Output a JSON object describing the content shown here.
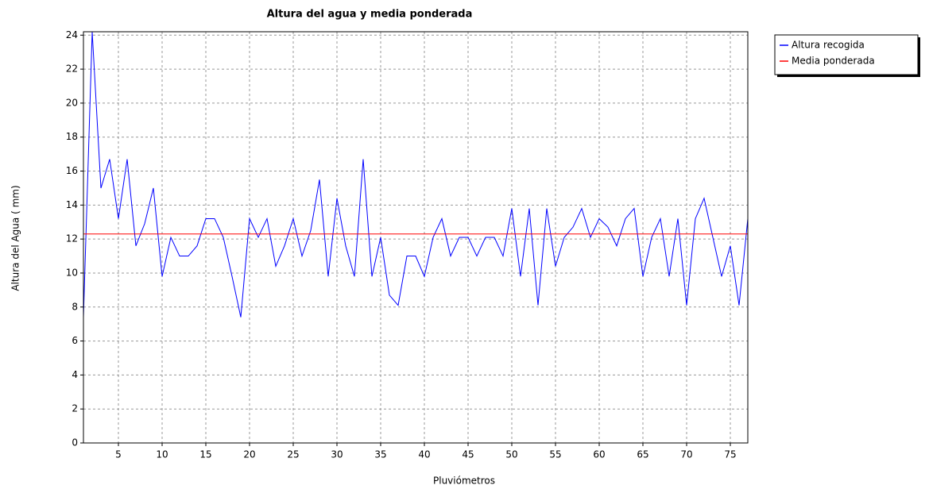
{
  "chart_data": {
    "type": "line",
    "title": "Altura del agua y media ponderada",
    "x_label": "Pluviómetros",
    "y_label": "Altura del Agua ( mm)",
    "x": [
      1,
      2,
      3,
      4,
      5,
      6,
      7,
      8,
      9,
      10,
      11,
      12,
      13,
      14,
      15,
      16,
      17,
      18,
      19,
      20,
      21,
      22,
      23,
      24,
      25,
      26,
      27,
      28,
      29,
      30,
      31,
      32,
      33,
      34,
      35,
      36,
      37,
      38,
      39,
      40,
      41,
      42,
      43,
      44,
      45,
      46,
      47,
      48,
      49,
      50,
      51,
      52,
      53,
      54,
      55,
      56,
      57,
      58,
      59,
      60,
      61,
      62,
      63,
      64,
      65,
      66,
      67,
      68,
      69,
      70,
      71,
      72,
      73,
      74,
      75,
      76,
      77
    ],
    "series": [
      {
        "name": "Altura recogida",
        "color": "#0000ff",
        "values": [
          7.4,
          24.2,
          15,
          16.7,
          13.2,
          16.7,
          11.6,
          12.9,
          15,
          9.8,
          12.1,
          11,
          11,
          11.6,
          13.2,
          13.2,
          12.1,
          9.8,
          7.4,
          13.2,
          12.1,
          13.2,
          10.4,
          11.6,
          13.2,
          11,
          12.5,
          15.5,
          9.8,
          14.4,
          11.6,
          9.8,
          16.7,
          9.8,
          12.1,
          8.7,
          8.1,
          11,
          11,
          9.8,
          12.1,
          13.2,
          11,
          12.1,
          12.1,
          11,
          12.1,
          12.1,
          11,
          13.8,
          9.8,
          13.8,
          8.1,
          13.8,
          10.4,
          12.1,
          12.7,
          13.8,
          12.1,
          13.2,
          12.7,
          11.6,
          13.2,
          13.8,
          9.8,
          12.1,
          13.2,
          9.8,
          13.2,
          8.1,
          13.2,
          14.4,
          12.1,
          9.8,
          11.6,
          8.1,
          13.2
        ]
      },
      {
        "name": "Media ponderada",
        "color": "#ff0000",
        "values": [
          12.3,
          12.3,
          12.3,
          12.3,
          12.3,
          12.3,
          12.3,
          12.3,
          12.3,
          12.3,
          12.3,
          12.3,
          12.3,
          12.3,
          12.3,
          12.3,
          12.3,
          12.3,
          12.3,
          12.3,
          12.3,
          12.3,
          12.3,
          12.3,
          12.3,
          12.3,
          12.3,
          12.3,
          12.3,
          12.3,
          12.3,
          12.3,
          12.3,
          12.3,
          12.3,
          12.3,
          12.3,
          12.3,
          12.3,
          12.3,
          12.3,
          12.3,
          12.3,
          12.3,
          12.3,
          12.3,
          12.3,
          12.3,
          12.3,
          12.3,
          12.3,
          12.3,
          12.3,
          12.3,
          12.3,
          12.3,
          12.3,
          12.3,
          12.3,
          12.3,
          12.3,
          12.3,
          12.3,
          12.3,
          12.3,
          12.3,
          12.3,
          12.3,
          12.3,
          12.3,
          12.3,
          12.3,
          12.3,
          12.3,
          12.3,
          12.3,
          12.3
        ]
      }
    ],
    "xlim": [
      1,
      77
    ],
    "xticks": [
      5,
      10,
      15,
      20,
      25,
      30,
      35,
      40,
      45,
      50,
      55,
      60,
      65,
      70,
      75
    ],
    "ylim": [
      0,
      24.2
    ],
    "yticks": [
      0,
      2,
      4,
      6,
      8,
      10,
      12,
      14,
      16,
      18,
      20,
      22,
      24
    ],
    "grid": true,
    "legend": "right"
  }
}
